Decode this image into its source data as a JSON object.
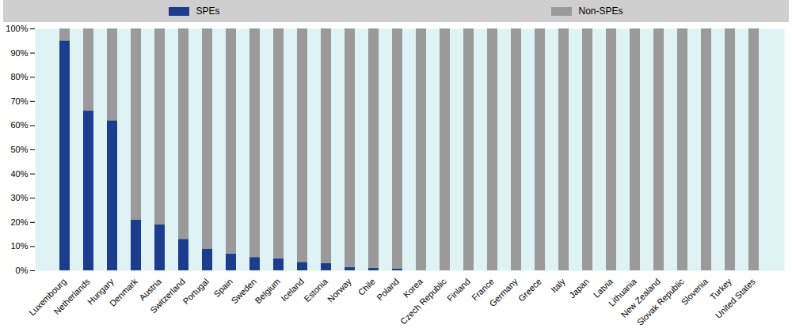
{
  "chart_data": {
    "type": "bar",
    "stacked": true,
    "legend": "top",
    "grid": false,
    "categories": [
      "Luxembourg",
      "Netherlands",
      "Hungary",
      "Denmark",
      "Austria",
      "Switzerland",
      "Portugal",
      "Spain",
      "Sweden",
      "Belgium",
      "Iceland",
      "Estonia",
      "Norway",
      "Chile",
      "Poland",
      "Korea",
      "Czech Republic",
      "Finland",
      "France",
      "Germany",
      "Greece",
      "Italy",
      "Japan",
      "Latvia",
      "Lithuania",
      "New Zealand",
      "Slovak Republic",
      "Slovenia",
      "Turkey",
      "United States"
    ],
    "series": [
      {
        "name": "SPEs",
        "color": "#1c3d8f",
        "values": [
          95,
          66,
          62,
          21,
          19,
          13,
          9,
          7,
          5.5,
          5,
          3.5,
          3,
          1.3,
          1,
          0.8,
          0,
          0,
          0,
          0,
          0,
          0,
          0,
          0,
          0,
          0,
          0,
          0,
          0,
          0,
          0
        ]
      },
      {
        "name": "Non-SPEs",
        "color": "#9a9a9a",
        "values": [
          5,
          34,
          38,
          79,
          81,
          87,
          91,
          93,
          94.5,
          95,
          96.5,
          97,
          98.7,
          99,
          99.2,
          100,
          100,
          100,
          100,
          100,
          100,
          100,
          100,
          100,
          100,
          100,
          100,
          100,
          100,
          100
        ]
      }
    ],
    "ylim": [
      0,
      100
    ],
    "yticks": [
      {
        "value": 0,
        "label": "0%"
      },
      {
        "value": 10,
        "label": "10%"
      },
      {
        "value": 20,
        "label": "20%"
      },
      {
        "value": 30,
        "label": "30%"
      },
      {
        "value": 40,
        "label": "40%"
      },
      {
        "value": 50,
        "label": "50%"
      },
      {
        "value": 60,
        "label": "60%"
      },
      {
        "value": 70,
        "label": "70%"
      },
      {
        "value": 80,
        "label": "80%"
      },
      {
        "value": 90,
        "label": "90%"
      },
      {
        "value": 100,
        "label": "100%"
      }
    ]
  }
}
